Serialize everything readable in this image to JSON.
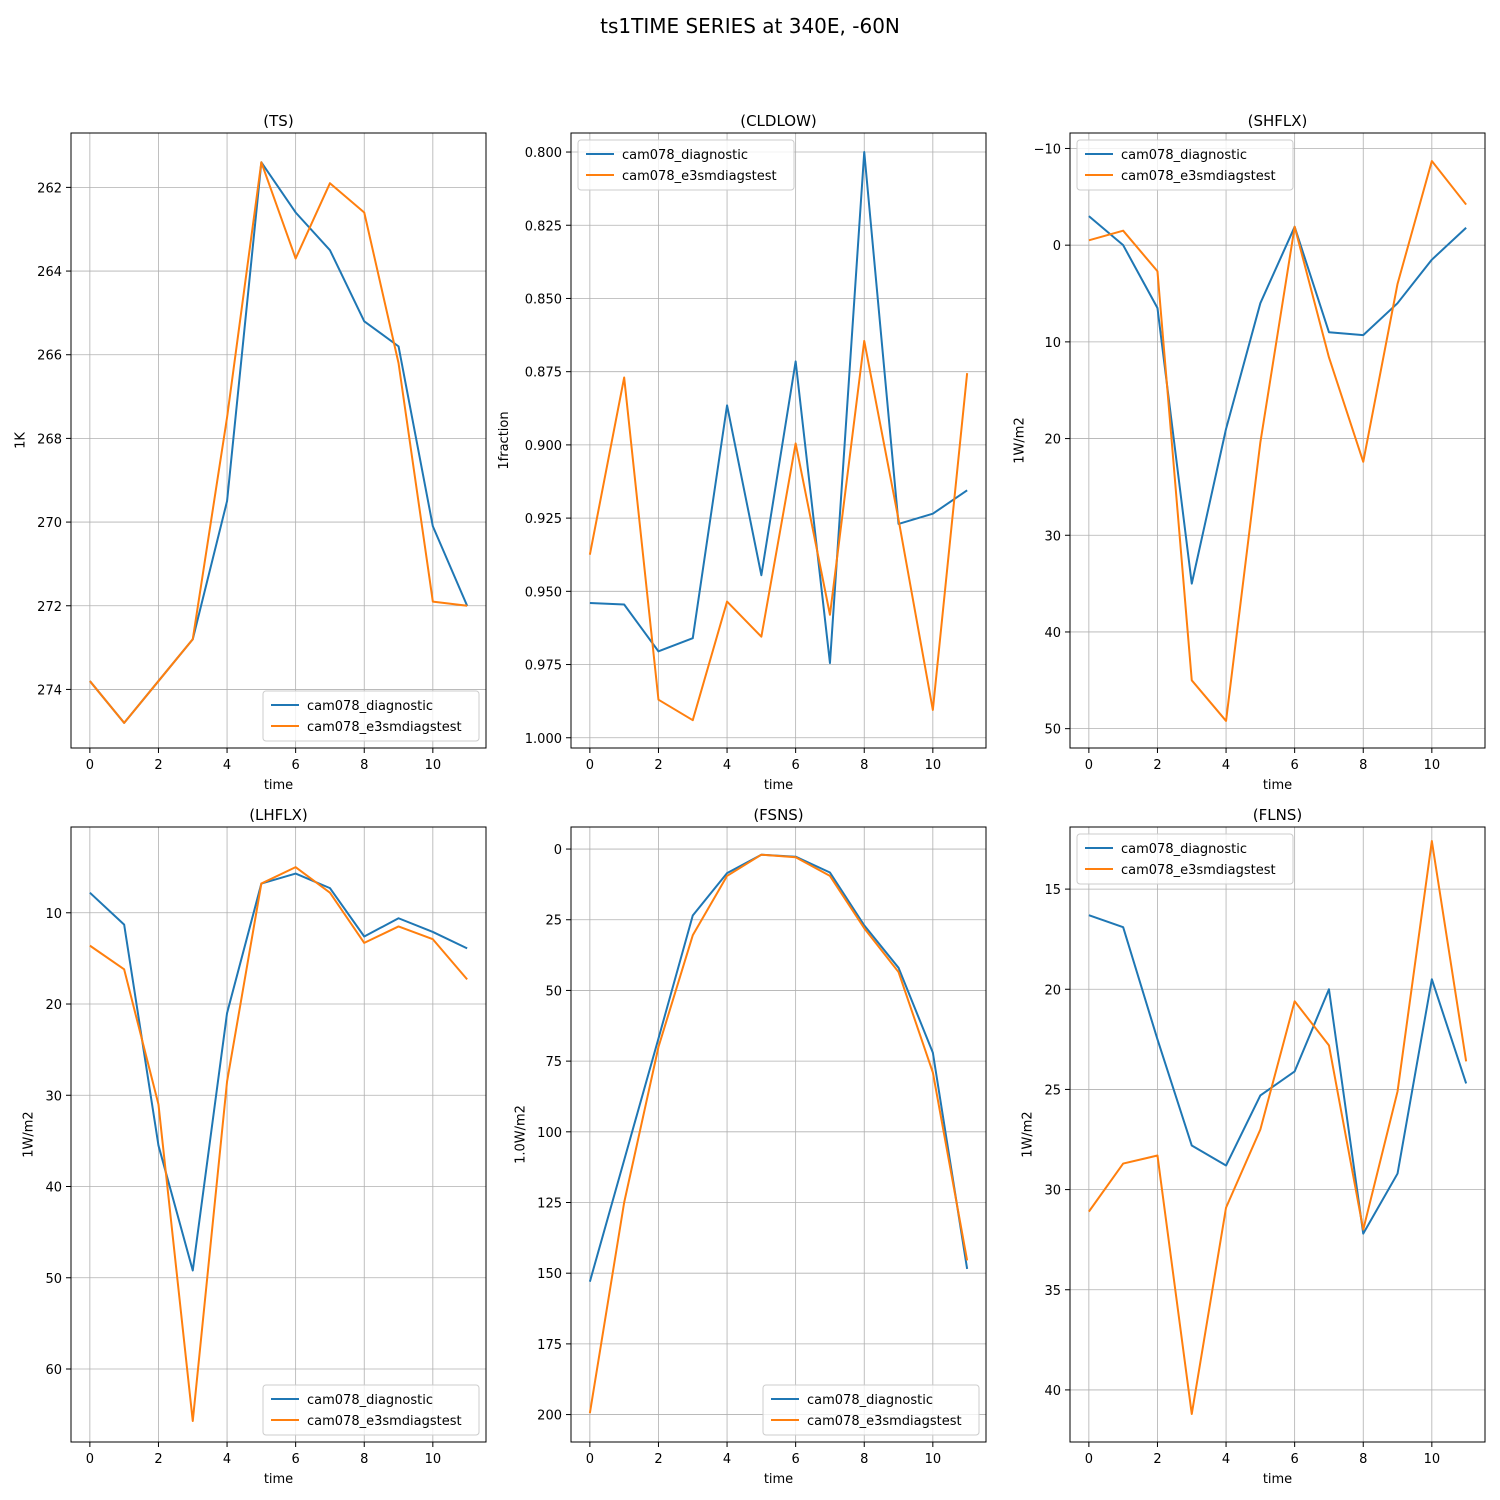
{
  "figure": {
    "title": "ts1TIME SERIES at 340E, -60N",
    "colors": {
      "series0": "#1f77b4",
      "series1": "#ff7f0e",
      "grid": "#b0b0b0"
    }
  },
  "chart_data": [
    {
      "type": "line",
      "title": "(TS)",
      "xlabel": "time",
      "ylabel": "1K",
      "x": [
        0,
        1,
        2,
        3,
        4,
        5,
        6,
        7,
        8,
        9,
        10,
        11
      ],
      "xlim": [
        -0.55,
        11.55
      ],
      "xticks": [
        0,
        2,
        4,
        6,
        8,
        10
      ],
      "ylim": [
        275.4,
        260.7
      ],
      "yticks": [
        262,
        264,
        266,
        268,
        270,
        272,
        274
      ],
      "inverted_y": true,
      "grid": true,
      "legend": "lower-right",
      "series": [
        {
          "name": "cam078_diagnostic",
          "values": [
            273.8,
            274.8,
            273.8,
            272.8,
            269.5,
            261.4,
            262.6,
            263.5,
            265.2,
            265.8,
            270.1,
            272.0
          ]
        },
        {
          "name": "cam078_e3smdiagstest",
          "values": [
            273.8,
            274.8,
            273.8,
            272.8,
            267.5,
            261.4,
            263.7,
            261.9,
            262.6,
            266.2,
            271.9,
            272.0
          ]
        }
      ]
    },
    {
      "type": "line",
      "title": "(CLDLOW)",
      "xlabel": "time",
      "ylabel": "1fraction",
      "x": [
        0,
        1,
        2,
        3,
        4,
        5,
        6,
        7,
        8,
        9,
        10,
        11
      ],
      "xlim": [
        -0.55,
        11.55
      ],
      "xticks": [
        0,
        2,
        4,
        6,
        8,
        10
      ],
      "ylim": [
        1.0035,
        0.7935
      ],
      "yticks": [
        0.8,
        0.825,
        0.85,
        0.875,
        0.9,
        0.925,
        0.95,
        0.975,
        1.0
      ],
      "inverted_y": true,
      "grid": true,
      "legend": "upper-left",
      "series": [
        {
          "name": "cam078_diagnostic",
          "values": [
            0.954,
            0.9545,
            0.9705,
            0.966,
            0.8865,
            0.9445,
            0.8715,
            0.9745,
            0.8,
            0.927,
            0.9235,
            0.9155
          ]
        },
        {
          "name": "cam078_e3smdiagstest",
          "values": [
            0.9375,
            0.877,
            0.987,
            0.994,
            0.9535,
            0.9655,
            0.8995,
            0.958,
            0.8645,
            0.9255,
            0.9905,
            0.8755
          ]
        }
      ]
    },
    {
      "type": "line",
      "title": "(SHFLX)",
      "xlabel": "time",
      "ylabel": "1W/m2",
      "x": [
        0,
        1,
        2,
        3,
        4,
        5,
        6,
        7,
        8,
        9,
        10,
        11
      ],
      "xlim": [
        -0.55,
        11.55
      ],
      "xticks": [
        0,
        2,
        4,
        6,
        8,
        10
      ],
      "ylim": [
        52.0,
        -11.6
      ],
      "yticks": [
        -10,
        0,
        10,
        20,
        30,
        40,
        50
      ],
      "inverted_y": true,
      "grid": true,
      "legend": "upper-left",
      "series": [
        {
          "name": "cam078_diagnostic",
          "values": [
            -3.0,
            0.0,
            6.5,
            35.0,
            19.0,
            6.0,
            -1.9,
            9.0,
            9.3,
            6.0,
            1.5,
            -1.8
          ]
        },
        {
          "name": "cam078_e3smdiagstest",
          "values": [
            -0.5,
            -1.5,
            2.7,
            45.0,
            49.2,
            20.4,
            -1.9,
            11.6,
            22.4,
            4.0,
            -8.7,
            -4.2
          ]
        }
      ]
    },
    {
      "type": "line",
      "title": "(LHFLX)",
      "xlabel": "time",
      "ylabel": "1W/m2",
      "x": [
        0,
        1,
        2,
        3,
        4,
        5,
        6,
        7,
        8,
        9,
        10,
        11
      ],
      "xlim": [
        -0.55,
        11.55
      ],
      "xticks": [
        0,
        2,
        4,
        6,
        8,
        10
      ],
      "ylim": [
        68.0,
        0.6
      ],
      "yticks": [
        10,
        20,
        30,
        40,
        50,
        60
      ],
      "inverted_y": true,
      "grid": true,
      "legend": "lower-right",
      "series": [
        {
          "name": "cam078_diagnostic",
          "values": [
            7.8,
            11.3,
            35.5,
            49.2,
            21.0,
            6.8,
            5.7,
            7.3,
            12.6,
            10.6,
            12.1,
            13.9
          ]
        },
        {
          "name": "cam078_e3smdiagstest",
          "values": [
            13.6,
            16.2,
            31.0,
            65.7,
            28.5,
            6.8,
            5.0,
            7.8,
            13.3,
            11.5,
            12.9,
            17.3
          ]
        }
      ]
    },
    {
      "type": "line",
      "title": "(FSNS)",
      "xlabel": "time",
      "ylabel": "1.0W/m2",
      "x": [
        0,
        1,
        2,
        3,
        4,
        5,
        6,
        7,
        8,
        9,
        10,
        11
      ],
      "xlim": [
        -0.55,
        11.55
      ],
      "xticks": [
        0,
        2,
        4,
        6,
        8,
        10
      ],
      "ylim": [
        209.7,
        -7.8
      ],
      "yticks": [
        0,
        25,
        50,
        75,
        100,
        125,
        150,
        175,
        200
      ],
      "inverted_y": true,
      "grid": true,
      "legend": "lower-right",
      "series": [
        {
          "name": "cam078_diagnostic",
          "values": [
            153.0,
            110.0,
            67.0,
            23.5,
            8.5,
            2.0,
            2.7,
            8.3,
            27.0,
            42.0,
            72.0,
            148.5
          ]
        },
        {
          "name": "cam078_e3smdiagstest",
          "values": [
            199.5,
            125.0,
            70.0,
            30.5,
            9.5,
            2.0,
            2.9,
            9.5,
            28.0,
            43.5,
            79.0,
            145.5
          ]
        }
      ]
    },
    {
      "type": "line",
      "title": "(FLNS)",
      "xlabel": "time",
      "ylabel": "1W/m2",
      "x": [
        0,
        1,
        2,
        3,
        4,
        5,
        6,
        7,
        8,
        9,
        10,
        11
      ],
      "xlim": [
        -0.55,
        11.55
      ],
      "xticks": [
        0,
        2,
        4,
        6,
        8,
        10
      ],
      "ylim": [
        42.6,
        11.9
      ],
      "yticks": [
        15,
        20,
        25,
        30,
        35,
        40
      ],
      "inverted_y": true,
      "grid": true,
      "legend": "upper-left",
      "series": [
        {
          "name": "cam078_diagnostic",
          "values": [
            16.3,
            16.9,
            22.5,
            27.8,
            28.8,
            25.3,
            24.1,
            20.0,
            32.2,
            29.2,
            19.5,
            24.7
          ]
        },
        {
          "name": "cam078_e3smdiagstest",
          "values": [
            31.1,
            28.7,
            28.3,
            41.2,
            30.9,
            27.0,
            20.6,
            22.8,
            32.0,
            25.1,
            12.6,
            23.6
          ]
        }
      ]
    }
  ]
}
